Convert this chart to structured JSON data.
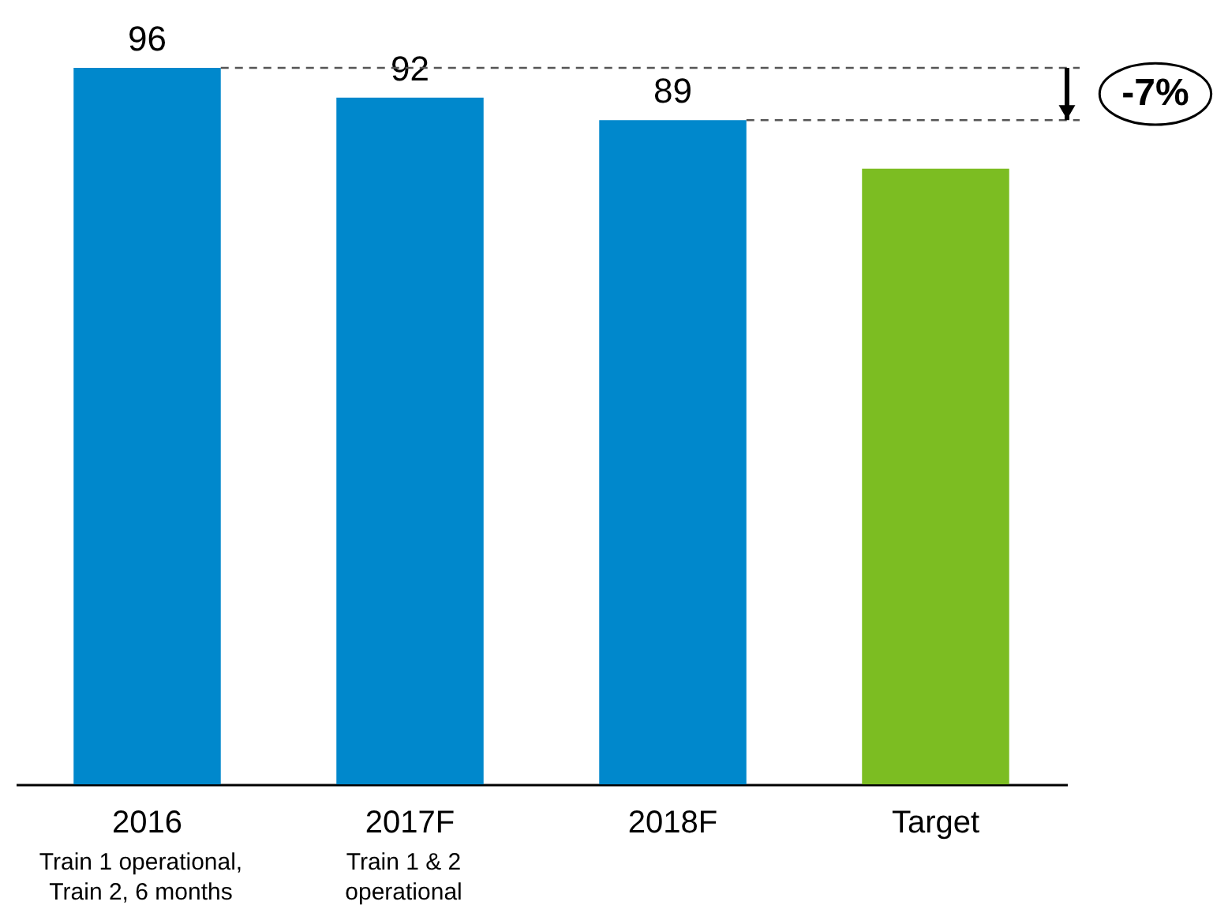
{
  "chart_data": {
    "type": "bar",
    "categories": [
      "2016",
      "2017F",
      "2018F",
      "Target"
    ],
    "values": [
      96,
      92,
      89,
      82.5
    ],
    "value_labels": [
      "96",
      "92",
      "89",
      null
    ],
    "colors": [
      "#0088cc",
      "#0088cc",
      "#0088cc",
      "#7cbd22"
    ],
    "ref_lines": [
      {
        "axis": "y",
        "value": 96,
        "label": null,
        "line_style": "dashed",
        "color": "#555555"
      },
      {
        "axis": "y",
        "value": 89,
        "label": null,
        "line_style": "dashed",
        "color": "#555555"
      }
    ],
    "annotations": [
      "Train 1 operational,\nTrain 2, 6 months",
      "Train 1 & 2\noperational",
      "-7%"
    ],
    "grid": false
  }
}
